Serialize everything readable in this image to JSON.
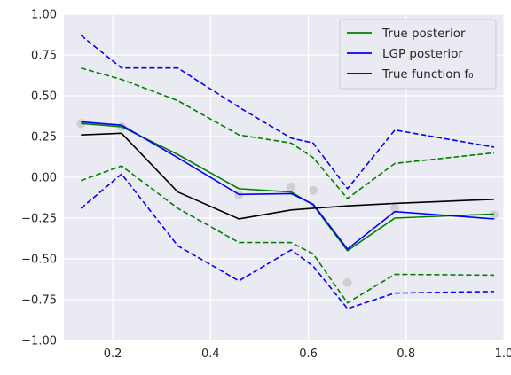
{
  "chart_data": {
    "type": "line",
    "xlim": [
      0.1,
      1.0
    ],
    "ylim": [
      -1.0,
      1.0
    ],
    "xticks": [
      "0.2",
      "0.4",
      "0.6",
      "0.8",
      "1.0"
    ],
    "yticks": [
      "-1.00",
      "-0.75",
      "-0.50",
      "-0.25",
      "0.00",
      "0.25",
      "0.50",
      "0.75",
      "1.00"
    ],
    "grid": true,
    "legend_position": "top-right",
    "x": [
      0.135,
      0.218,
      0.333,
      0.458,
      0.565,
      0.61,
      0.68,
      0.777,
      0.98
    ],
    "observations": [
      {
        "x": 0.135,
        "y": 0.33
      },
      {
        "x": 0.218,
        "y": 0.31
      },
      {
        "x": 0.458,
        "y": -0.11
      },
      {
        "x": 0.565,
        "y": -0.06
      },
      {
        "x": 0.61,
        "y": -0.08
      },
      {
        "x": 0.68,
        "y": -0.645
      },
      {
        "x": 0.777,
        "y": -0.19
      },
      {
        "x": 0.98,
        "y": -0.23
      }
    ],
    "series": [
      {
        "name": "True posterior",
        "color": "#008000",
        "style": "solid",
        "values": [
          0.33,
          0.31,
          0.14,
          -0.07,
          -0.09,
          -0.17,
          -0.45,
          -0.25,
          -0.225
        ]
      },
      {
        "name": "LGP posterior",
        "color": "#0000ff",
        "style": "solid",
        "values": [
          0.34,
          0.32,
          0.12,
          -0.105,
          -0.1,
          -0.165,
          -0.44,
          -0.21,
          -0.255
        ]
      },
      {
        "name": "True function f₀",
        "color": "#000000",
        "style": "solid",
        "values": [
          0.26,
          0.27,
          -0.09,
          -0.255,
          -0.2,
          -0.19,
          -0.175,
          -0.16,
          -0.135
        ]
      },
      {
        "name": "",
        "color": "#008000",
        "style": "dashed",
        "values": [
          0.67,
          0.6,
          0.47,
          0.26,
          0.21,
          0.12,
          -0.13,
          0.085,
          0.15
        ]
      },
      {
        "name": "",
        "color": "#008000",
        "style": "dashed",
        "values": [
          -0.02,
          0.07,
          -0.19,
          -0.4,
          -0.4,
          -0.47,
          -0.77,
          -0.595,
          -0.6
        ]
      },
      {
        "name": "",
        "color": "#0000ff",
        "style": "dashed",
        "values": [
          0.87,
          0.67,
          0.67,
          0.43,
          0.24,
          0.21,
          -0.07,
          0.29,
          0.185
        ]
      },
      {
        "name": "",
        "color": "#0000ff",
        "style": "dashed",
        "values": [
          -0.19,
          0.02,
          -0.42,
          -0.635,
          -0.445,
          -0.545,
          -0.805,
          -0.71,
          -0.7
        ]
      }
    ]
  }
}
